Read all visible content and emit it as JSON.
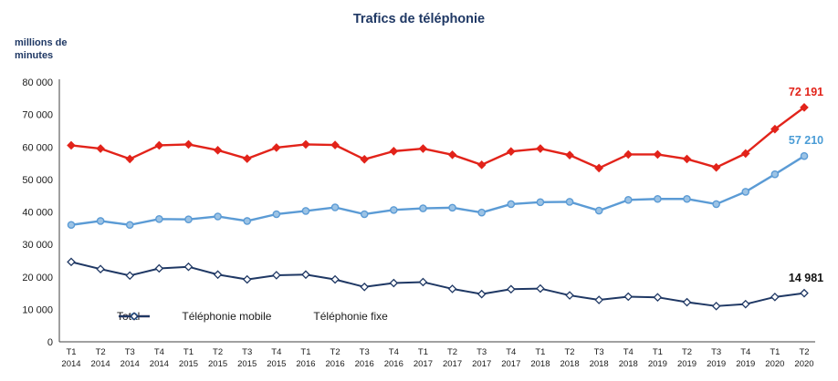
{
  "chart_data": {
    "type": "line",
    "title": "Trafics de téléphonie",
    "ylabel": "millions de minutes",
    "ylim": [
      0,
      80000
    ],
    "ytick_step": 10000,
    "ytick_labels": [
      "0",
      "10 000",
      "20 000",
      "30 000",
      "40 000",
      "50 000",
      "60 000",
      "70 000",
      "80 000"
    ],
    "grid": false,
    "legend_position": "bottom-inside",
    "x_quarters": [
      "T1",
      "T2",
      "T3",
      "T4",
      "T1",
      "T2",
      "T3",
      "T4",
      "T1",
      "T2",
      "T3",
      "T4",
      "T1",
      "T2",
      "T3",
      "T4",
      "T1",
      "T2",
      "T3",
      "T4",
      "T1",
      "T2",
      "T3",
      "T4",
      "T1",
      "T2"
    ],
    "x_years": [
      "2014",
      "2014",
      "2014",
      "2014",
      "2015",
      "2015",
      "2015",
      "2015",
      "2016",
      "2016",
      "2016",
      "2016",
      "2017",
      "2017",
      "2017",
      "2017",
      "2018",
      "2018",
      "2018",
      "2018",
      "2019",
      "2019",
      "2019",
      "2019",
      "2020",
      "2020"
    ],
    "series": [
      {
        "id": "total",
        "name": "Total",
        "color": "#e2231a",
        "marker": "diamond",
        "marker_fill": "#e2231a",
        "line_width": 2.4,
        "label_color": "#e2231a",
        "end_label": "72 191",
        "values": [
          60500,
          59500,
          56300,
          60500,
          60800,
          59000,
          56400,
          59800,
          60800,
          60600,
          56200,
          58700,
          59500,
          57600,
          54500,
          58600,
          59500,
          57500,
          53500,
          57700,
          57700,
          56300,
          53700,
          58000,
          65500,
          72191
        ]
      },
      {
        "id": "mobile",
        "name": "Téléphonie mobile",
        "color": "#5b9bd5",
        "marker": "circle",
        "marker_fill": "#9cc3e5",
        "line_width": 2.4,
        "label_color": "#4a9cd6",
        "end_label": "57 210",
        "values": [
          36000,
          37200,
          36000,
          37800,
          37700,
          38600,
          37200,
          39300,
          40300,
          41400,
          39300,
          40600,
          41100,
          41300,
          39800,
          42400,
          43000,
          43100,
          40400,
          43700,
          44000,
          44000,
          42400,
          46200,
          51600,
          57210
        ]
      },
      {
        "id": "fixe",
        "name": "Téléphonie fixe",
        "color": "#1f3864",
        "marker": "diamond",
        "marker_fill": "#ffffff",
        "line_width": 2,
        "label_color": "#111111",
        "end_label": "14 981",
        "values": [
          24600,
          22400,
          20400,
          22600,
          23100,
          20700,
          19200,
          20500,
          20700,
          19200,
          16900,
          18100,
          18400,
          16300,
          14700,
          16200,
          16400,
          14300,
          12900,
          13900,
          13700,
          12200,
          11000,
          11600,
          13800,
          14981
        ]
      }
    ]
  }
}
